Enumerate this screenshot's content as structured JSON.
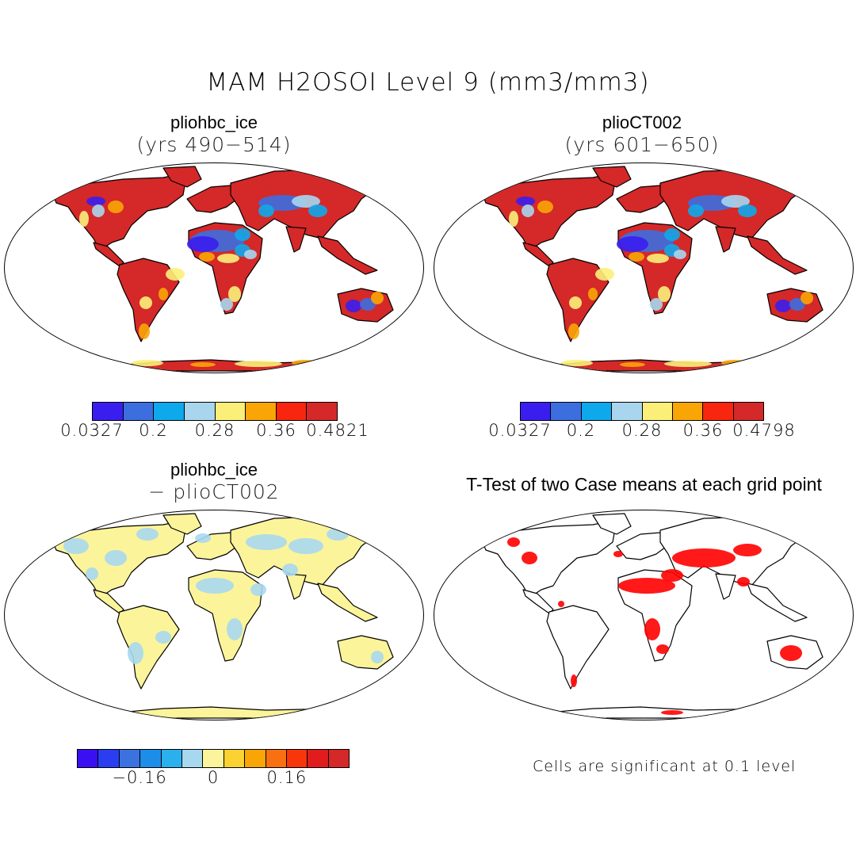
{
  "title": "MAM H2OSOI Level 9 (mm3/mm3)",
  "panels": [
    {
      "id": "a",
      "title": "pliohbc_ice",
      "subtitle": "(yrs 490−514)"
    },
    {
      "id": "b",
      "title": "plioCT002",
      "subtitle": "(yrs 601−650)"
    },
    {
      "id": "c",
      "title": "pliohbc_ice",
      "subtitle": "− plioCT002"
    },
    {
      "id": "d",
      "title": "T-Test of two Case means at each grid point",
      "subtitle": ""
    }
  ],
  "colorbars": [
    {
      "id": "abs-a",
      "colors": [
        "#3a1ef0",
        "#3c6ee0",
        "#0ea8ec",
        "#a9d6ee",
        "#fbef7a",
        "#f9a506",
        "#f8260e",
        "#d52828"
      ],
      "labels": [
        "0.0327",
        "0.2",
        "0.28",
        "0.36",
        "0.4821"
      ]
    },
    {
      "id": "abs-b",
      "colors": [
        "#3a1ef0",
        "#3c6ee0",
        "#0ea8ec",
        "#a9d6ee",
        "#fbef7a",
        "#f9a506",
        "#f8260e",
        "#d52828"
      ],
      "labels": [
        "0.0327",
        "0.2",
        "0.28",
        "0.36",
        "0.4798"
      ]
    },
    {
      "id": "diff",
      "colors": [
        "#3a10f2",
        "#2a3ef0",
        "#3c72e0",
        "#1c8ee8",
        "#2ab0ec",
        "#a8d8f0",
        "#fbf49a",
        "#fad232",
        "#f9a506",
        "#f87010",
        "#f8360c",
        "#e01c1c",
        "#d52828"
      ],
      "labels": [
        "−0.16",
        "0",
        "0.16"
      ]
    }
  ],
  "significance_note": "Cells are significant at 0.1 level",
  "legend_colors": {
    "significant": "#ff0000"
  }
}
